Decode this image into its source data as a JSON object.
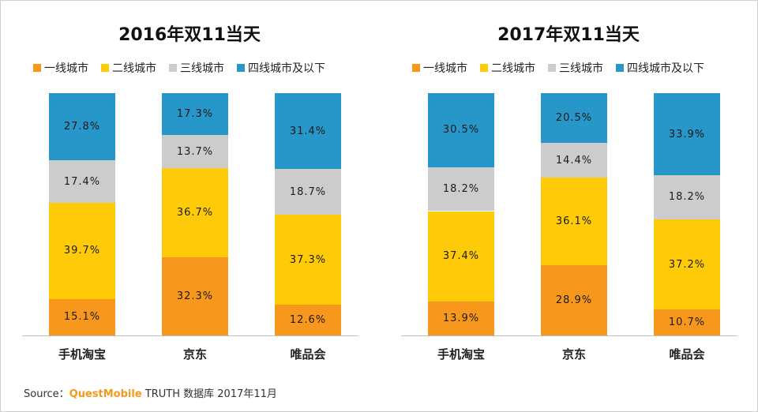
{
  "colors": {
    "tier1": "#f7981d",
    "tier2": "#ffca08",
    "tier3": "#cccccc",
    "tier4": "#2796c9"
  },
  "legend": [
    "一线城市",
    "二线城市",
    "三线城市",
    "四线城市及以下"
  ],
  "chart_data": [
    {
      "type": "bar",
      "stacked": true,
      "title": "2016年双11当天",
      "categories": [
        "手机淘宝",
        "京东",
        "唯品会"
      ],
      "ylim": [
        0,
        100
      ],
      "legend_position": "top",
      "series": [
        {
          "name": "一线城市",
          "values": [
            15.1,
            32.3,
            12.6
          ],
          "labels": [
            "15.1%",
            "32.3%",
            "12.6%"
          ]
        },
        {
          "name": "二线城市",
          "values": [
            39.7,
            36.7,
            37.3
          ],
          "labels": [
            "39.7%",
            "36.7%",
            "37.3%"
          ]
        },
        {
          "name": "三线城市",
          "values": [
            17.4,
            13.7,
            18.7
          ],
          "labels": [
            "17.4%",
            "13.7%",
            "18.7%"
          ]
        },
        {
          "name": "四线城市及以下",
          "values": [
            27.8,
            17.3,
            31.4
          ],
          "labels": [
            "27.8%",
            "17.3%",
            "31.4%"
          ]
        }
      ]
    },
    {
      "type": "bar",
      "stacked": true,
      "title": "2017年双11当天",
      "categories": [
        "手机淘宝",
        "京东",
        "唯品会"
      ],
      "ylim": [
        0,
        100
      ],
      "legend_position": "top",
      "series": [
        {
          "name": "一线城市",
          "values": [
            13.9,
            28.9,
            10.7
          ],
          "labels": [
            "13.9%",
            "28.9%",
            "10.7%"
          ]
        },
        {
          "name": "二线城市",
          "values": [
            37.4,
            36.1,
            37.2
          ],
          "labels": [
            "37.4%",
            "36.1%",
            "37.2%"
          ]
        },
        {
          "name": "三线城市",
          "values": [
            18.2,
            14.4,
            18.2
          ],
          "labels": [
            "18.2%",
            "14.4%",
            "18.2%"
          ]
        },
        {
          "name": "四线城市及以下",
          "values": [
            30.5,
            20.5,
            33.9
          ],
          "labels": [
            "30.5%",
            "20.5%",
            "33.9%"
          ]
        }
      ]
    }
  ],
  "source": {
    "prefix": "Source：",
    "brand": "QuestMobile",
    "suffix": " TRUTH 数据库 2017年11月"
  }
}
